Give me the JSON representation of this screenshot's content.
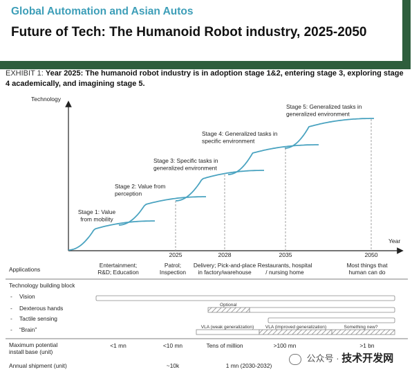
{
  "header": {
    "brand": "Global Automation and Asian Autos",
    "title": "Future of Tech: The Humanoid Robot industry, 2025-2050"
  },
  "exhibit": {
    "label": "EXHIBIT 1:",
    "text": "Year 2025: The humanoid robot industry is in adoption stage 1&2, entering stage 3, exploring stage 4 academically, and imagining stage 5."
  },
  "chart_data": {
    "type": "line",
    "ylabel": "Technology",
    "xlabel": "Year",
    "x_ticks": [
      "2025",
      "2028",
      "2035",
      "2050"
    ],
    "stages": [
      {
        "name": "Stage 1",
        "label": [
          "Stage 1: Value",
          "from mobility"
        ]
      },
      {
        "name": "Stage 2",
        "label": [
          "Stage 2: Value from",
          "perception"
        ]
      },
      {
        "name": "Stage 3",
        "label": [
          "Stage 3: Specific tasks in",
          "generalized environment"
        ]
      },
      {
        "name": "Stage 4",
        "label": [
          "Stage 4: Generalized tasks in",
          "specific environment"
        ]
      },
      {
        "name": "Stage 5",
        "label": [
          "Stage 5: Generalized tasks in",
          "generalized environment"
        ]
      }
    ],
    "series_color": "#4aa3c0",
    "grid": false
  },
  "table": {
    "applications_label": "Applications",
    "applications": [
      [
        "Entertainment;",
        "R&D; Education"
      ],
      [
        "Patrol;",
        "Inspection"
      ],
      [
        "Delivery; Pick-and-place",
        "in factory/warehouse"
      ],
      [
        "Restaurants, hospital",
        "/ nursing home"
      ],
      [
        "Most things that",
        "human can do"
      ]
    ],
    "building_block_label": "Technology building block",
    "blocks": [
      {
        "name": "Vision"
      },
      {
        "name": "Dexterous hands",
        "note": "Optional"
      },
      {
        "name": "Tactile sensing"
      },
      {
        "name": "“Brain”",
        "segments": [
          "VLA (weak generalization)",
          "VLA (improved generalization)",
          "Something new?"
        ]
      }
    ],
    "install_base_label": [
      "Maximum potential",
      "install base (unit)"
    ],
    "install_base": [
      "<1 mn",
      "<10 mn",
      "Tens of million",
      ">100 mn",
      ">1 bn"
    ],
    "shipment_label": "Annual shipment (unit)",
    "shipment": [
      "~10k",
      "1 mn (2030-2032)"
    ]
  },
  "watermark": {
    "prefix": "公众号 ·",
    "bold": "技术开发网"
  }
}
